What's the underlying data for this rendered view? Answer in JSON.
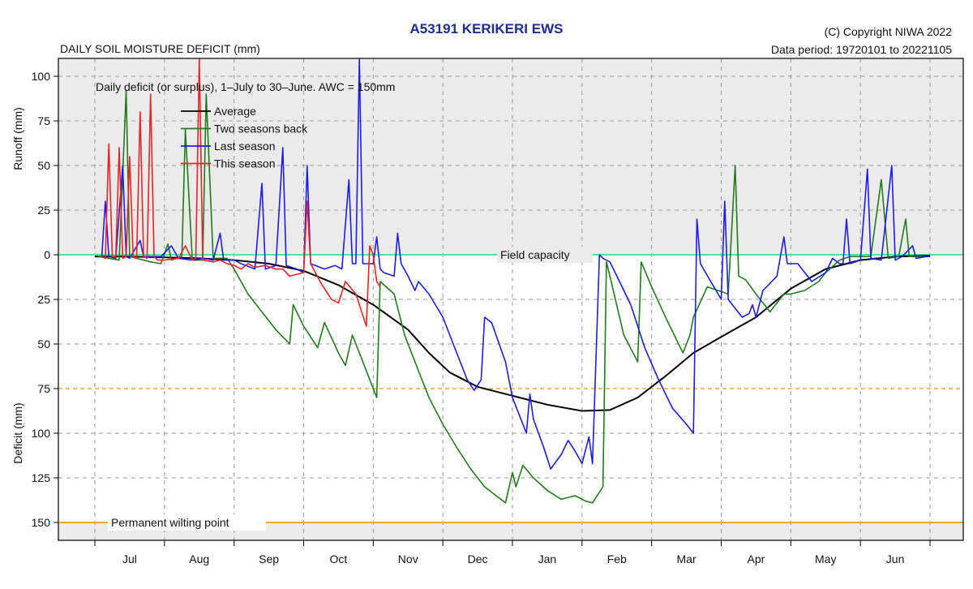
{
  "header": {
    "title": "A53191  KERIKERI EWS",
    "subtitle": "DAILY SOIL MOISTURE DEFICIT (mm)",
    "copyright": "(C) Copyright NIWA  2022",
    "period": "Data period:  19720101  to  20221105"
  },
  "colors": {
    "panel": "#ebebeb",
    "grid": "#9a9a9a",
    "field_capacity": "#4ee89c",
    "threshold": "#f5a623",
    "average": "#000000",
    "two_seasons_back": "#217a1e",
    "last_season": "#1c1cf0",
    "this_season": "#ee2222"
  },
  "chart_data": {
    "type": "line",
    "title": "A53191  KERIKERI EWS",
    "ylabel_top": "Runoff (mm)",
    "ylabel_bottom": "Deficit (mm)",
    "legend_title": "Daily deficit (or surplus), 1–July to 30–June.  AWC = 150mm",
    "legend_placement": "top-left",
    "grid": true,
    "x_range": [
      0,
      12
    ],
    "y_range": [
      110,
      -160
    ],
    "x_unit": "month offset from 1 July",
    "y_note": "positive = runoff (mm), negative = deficit (mm)",
    "month_labels": [
      "Jul",
      "Aug",
      "Sep",
      "Oct",
      "Nov",
      "Dec",
      "Jan",
      "Feb",
      "Mar",
      "Apr",
      "May",
      "Jun"
    ],
    "y_ticks": [
      {
        "v": 100,
        "label": "100"
      },
      {
        "v": 75,
        "label": "75"
      },
      {
        "v": 50,
        "label": "50"
      },
      {
        "v": 25,
        "label": "25"
      },
      {
        "v": 0,
        "label": "0"
      },
      {
        "v": -25,
        "label": "25"
      },
      {
        "v": -50,
        "label": "50"
      },
      {
        "v": -75,
        "label": "75"
      },
      {
        "v": -100,
        "label": "100"
      },
      {
        "v": -125,
        "label": "125"
      },
      {
        "v": -150,
        "label": "150"
      }
    ],
    "reference_lines": [
      {
        "value": 0,
        "label": "Field capacity",
        "style": "solid",
        "color_key": "field_capacity"
      },
      {
        "value": -75,
        "label": "",
        "style": "dashed",
        "color_key": "threshold"
      },
      {
        "value": -150,
        "label": "Permanent wilting point",
        "style": "solid",
        "color_key": "threshold"
      }
    ],
    "series": [
      {
        "name": "Average",
        "color_key": "average",
        "width": 2,
        "points": [
          [
            0,
            -1
          ],
          [
            0.5,
            -1
          ],
          [
            1,
            -1.5
          ],
          [
            1.5,
            -2
          ],
          [
            2,
            -3
          ],
          [
            2.5,
            -5
          ],
          [
            3,
            -9
          ],
          [
            3.5,
            -17
          ],
          [
            4,
            -28
          ],
          [
            4.5,
            -42
          ],
          [
            4.8,
            -55
          ],
          [
            5.1,
            -66
          ],
          [
            5.5,
            -74
          ],
          [
            6,
            -79
          ],
          [
            6.5,
            -84
          ],
          [
            7,
            -87.5
          ],
          [
            7.4,
            -87
          ],
          [
            7.8,
            -80
          ],
          [
            8.2,
            -68
          ],
          [
            8.6,
            -55
          ],
          [
            9,
            -46
          ],
          [
            9.5,
            -35
          ],
          [
            10,
            -19
          ],
          [
            10.5,
            -8
          ],
          [
            11,
            -3
          ],
          [
            11.5,
            -1
          ],
          [
            12,
            -0.5
          ]
        ]
      },
      {
        "name": "Two seasons back",
        "color_key": "two_seasons_back",
        "width": 1.6,
        "points": [
          [
            0.05,
            -1
          ],
          [
            0.2,
            -2
          ],
          [
            0.35,
            -3
          ],
          [
            0.45,
            92
          ],
          [
            0.5,
            -1
          ],
          [
            0.6,
            -2
          ],
          [
            0.8,
            -4
          ],
          [
            0.95,
            -5
          ],
          [
            1.05,
            6
          ],
          [
            1.1,
            -3
          ],
          [
            1.25,
            -1
          ],
          [
            1.3,
            70
          ],
          [
            1.4,
            -3
          ],
          [
            1.55,
            -3
          ],
          [
            1.6,
            90
          ],
          [
            1.7,
            -2
          ],
          [
            1.9,
            -2
          ],
          [
            2.0,
            -8
          ],
          [
            2.2,
            -22
          ],
          [
            2.4,
            -32
          ],
          [
            2.6,
            -42
          ],
          [
            2.8,
            -50
          ],
          [
            2.85,
            -28
          ],
          [
            3.0,
            -40
          ],
          [
            3.2,
            -52
          ],
          [
            3.3,
            -38
          ],
          [
            3.5,
            -55
          ],
          [
            3.6,
            -62
          ],
          [
            3.7,
            -45
          ],
          [
            3.9,
            -65
          ],
          [
            4.0,
            -75
          ],
          [
            4.05,
            -80
          ],
          [
            4.1,
            -15
          ],
          [
            4.3,
            -22
          ],
          [
            4.45,
            -45
          ],
          [
            4.6,
            -60
          ],
          [
            4.8,
            -80
          ],
          [
            5.0,
            -95
          ],
          [
            5.2,
            -108
          ],
          [
            5.4,
            -120
          ],
          [
            5.6,
            -130
          ],
          [
            5.8,
            -136
          ],
          [
            5.9,
            -139
          ],
          [
            6.0,
            -122
          ],
          [
            6.05,
            -130
          ],
          [
            6.15,
            -118
          ],
          [
            6.3,
            -125
          ],
          [
            6.5,
            -132
          ],
          [
            6.7,
            -137
          ],
          [
            6.9,
            -135
          ],
          [
            7.05,
            -138
          ],
          [
            7.15,
            -139
          ],
          [
            7.3,
            -130
          ],
          [
            7.35,
            -4
          ],
          [
            7.4,
            -12
          ],
          [
            7.6,
            -45
          ],
          [
            7.8,
            -60
          ],
          [
            7.85,
            -4
          ],
          [
            8.0,
            -18
          ],
          [
            8.2,
            -35
          ],
          [
            8.45,
            -55
          ],
          [
            8.55,
            -45
          ],
          [
            8.6,
            -35
          ],
          [
            8.8,
            -18
          ],
          [
            9.1,
            -22
          ],
          [
            9.2,
            50
          ],
          [
            9.25,
            -12
          ],
          [
            9.35,
            -14
          ],
          [
            9.5,
            -22
          ],
          [
            9.7,
            -32
          ],
          [
            9.9,
            -22
          ],
          [
            10.0,
            -22
          ],
          [
            10.2,
            -20
          ],
          [
            10.4,
            -15
          ],
          [
            10.5,
            -10
          ],
          [
            10.7,
            -3
          ],
          [
            10.85,
            -1
          ],
          [
            11.0,
            -1
          ],
          [
            11.15,
            -1
          ],
          [
            11.3,
            42
          ],
          [
            11.4,
            -2
          ],
          [
            11.55,
            -1
          ],
          [
            11.65,
            20
          ],
          [
            11.7,
            -1
          ],
          [
            12,
            -1
          ]
        ]
      },
      {
        "name": "Last season",
        "color_key": "last_season",
        "width": 1.6,
        "points": [
          [
            0.1,
            -1
          ],
          [
            0.15,
            30
          ],
          [
            0.2,
            -1
          ],
          [
            0.3,
            -2
          ],
          [
            0.4,
            50
          ],
          [
            0.45,
            -1
          ],
          [
            0.5,
            -2
          ],
          [
            0.65,
            8
          ],
          [
            0.7,
            -1
          ],
          [
            0.8,
            -1
          ],
          [
            0.95,
            -1
          ],
          [
            1.1,
            5
          ],
          [
            1.2,
            -2
          ],
          [
            1.4,
            -3
          ],
          [
            1.55,
            -2
          ],
          [
            1.7,
            -3
          ],
          [
            1.8,
            12
          ],
          [
            1.85,
            -3
          ],
          [
            2.0,
            -3
          ],
          [
            2.1,
            -5
          ],
          [
            2.3,
            -8
          ],
          [
            2.4,
            40
          ],
          [
            2.45,
            -8
          ],
          [
            2.6,
            -6
          ],
          [
            2.7,
            60
          ],
          [
            2.75,
            -6
          ],
          [
            2.9,
            -8
          ],
          [
            3.0,
            -10
          ],
          [
            3.05,
            50
          ],
          [
            3.1,
            -5
          ],
          [
            3.3,
            -8
          ],
          [
            3.45,
            -6
          ],
          [
            3.55,
            -8
          ],
          [
            3.65,
            42
          ],
          [
            3.7,
            -5
          ],
          [
            3.75,
            -5
          ],
          [
            3.8,
            110
          ],
          [
            3.85,
            -5
          ],
          [
            4.0,
            -5
          ],
          [
            4.05,
            10
          ],
          [
            4.1,
            -8
          ],
          [
            4.15,
            -10
          ],
          [
            4.3,
            -12
          ],
          [
            4.35,
            12
          ],
          [
            4.4,
            -5
          ],
          [
            4.5,
            -12
          ],
          [
            4.6,
            -20
          ],
          [
            4.65,
            -15
          ],
          [
            4.8,
            -22
          ],
          [
            5.0,
            -35
          ],
          [
            5.2,
            -55
          ],
          [
            5.35,
            -70
          ],
          [
            5.45,
            -76
          ],
          [
            5.55,
            -70
          ],
          [
            5.6,
            -35
          ],
          [
            5.7,
            -38
          ],
          [
            5.9,
            -60
          ],
          [
            6.0,
            -80
          ],
          [
            6.2,
            -100
          ],
          [
            6.25,
            -78
          ],
          [
            6.3,
            -92
          ],
          [
            6.45,
            -108
          ],
          [
            6.55,
            -120
          ],
          [
            6.7,
            -112
          ],
          [
            6.8,
            -104
          ],
          [
            6.9,
            -110
          ],
          [
            7.0,
            -117
          ],
          [
            7.1,
            -102
          ],
          [
            7.15,
            -117
          ],
          [
            7.25,
            0
          ],
          [
            7.3,
            -2
          ],
          [
            7.4,
            -4
          ],
          [
            7.5,
            -12
          ],
          [
            7.7,
            -28
          ],
          [
            7.9,
            -52
          ],
          [
            8.1,
            -70
          ],
          [
            8.3,
            -86
          ],
          [
            8.5,
            -95
          ],
          [
            8.6,
            -100
          ],
          [
            8.65,
            20
          ],
          [
            8.7,
            -5
          ],
          [
            8.85,
            -15
          ],
          [
            9.0,
            -25
          ],
          [
            9.05,
            30
          ],
          [
            9.1,
            -25
          ],
          [
            9.3,
            -35
          ],
          [
            9.4,
            -33
          ],
          [
            9.45,
            -28
          ],
          [
            9.5,
            -35
          ],
          [
            9.6,
            -20
          ],
          [
            9.8,
            -12
          ],
          [
            9.9,
            10
          ],
          [
            9.95,
            -5
          ],
          [
            10.1,
            -5
          ],
          [
            10.3,
            -15
          ],
          [
            10.5,
            -10
          ],
          [
            10.6,
            -2
          ],
          [
            10.7,
            -5
          ],
          [
            10.75,
            -5
          ],
          [
            10.8,
            20
          ],
          [
            10.85,
            -5
          ],
          [
            11.0,
            -3
          ],
          [
            11.1,
            48
          ],
          [
            11.15,
            -2
          ],
          [
            11.3,
            -3
          ],
          [
            11.45,
            50
          ],
          [
            11.5,
            -3
          ],
          [
            11.6,
            -1
          ],
          [
            11.75,
            5
          ],
          [
            11.8,
            -2
          ],
          [
            11.95,
            -1
          ],
          [
            12,
            -1
          ]
        ]
      },
      {
        "name": "This season",
        "color_key": "this_season",
        "width": 1.6,
        "points": [
          [
            0.1,
            -1
          ],
          [
            0.15,
            -2
          ],
          [
            0.2,
            62
          ],
          [
            0.25,
            -1
          ],
          [
            0.3,
            -1
          ],
          [
            0.35,
            60
          ],
          [
            0.4,
            -2
          ],
          [
            0.45,
            -1
          ],
          [
            0.5,
            55
          ],
          [
            0.55,
            -1
          ],
          [
            0.6,
            -2
          ],
          [
            0.65,
            80
          ],
          [
            0.7,
            -1
          ],
          [
            0.75,
            -2
          ],
          [
            0.8,
            90
          ],
          [
            0.85,
            -1
          ],
          [
            0.9,
            -3
          ],
          [
            1.0,
            -3
          ],
          [
            1.2,
            -2
          ],
          [
            1.3,
            5
          ],
          [
            1.4,
            -3
          ],
          [
            1.45,
            -2
          ],
          [
            1.5,
            110
          ],
          [
            1.55,
            -3
          ],
          [
            1.7,
            -4
          ],
          [
            1.8,
            -3
          ],
          [
            1.9,
            -5
          ],
          [
            2.0,
            -6
          ],
          [
            2.1,
            -8
          ],
          [
            2.2,
            -5
          ],
          [
            2.3,
            -7
          ],
          [
            2.45,
            -6
          ],
          [
            2.6,
            -8
          ],
          [
            2.7,
            -8
          ],
          [
            2.8,
            -12
          ],
          [
            3.0,
            -10
          ],
          [
            3.05,
            30
          ],
          [
            3.1,
            -5
          ],
          [
            3.25,
            -16
          ],
          [
            3.4,
            -25
          ],
          [
            3.5,
            -27
          ],
          [
            3.6,
            -15
          ],
          [
            3.75,
            -22
          ],
          [
            3.9,
            -40
          ],
          [
            3.95,
            5
          ],
          [
            4.0,
            0
          ],
          [
            4.05,
            -15
          ],
          [
            4.1,
            -18
          ]
        ]
      }
    ]
  }
}
